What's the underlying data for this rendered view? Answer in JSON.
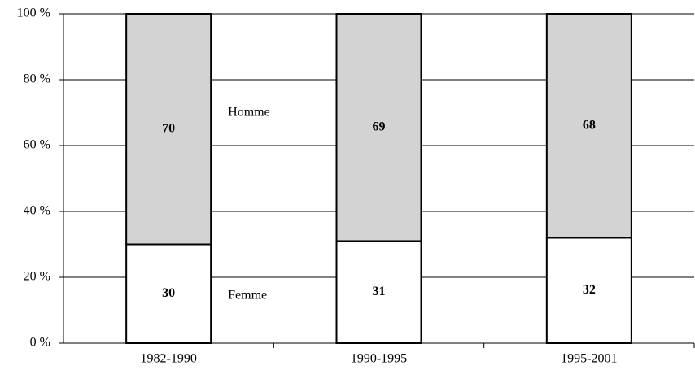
{
  "chart_data": {
    "type": "stacked-bar",
    "categories": [
      "1982-1990",
      "1990-1995",
      "1995-2001"
    ],
    "series": [
      {
        "name": "Femme",
        "color": "#ffffff",
        "values": [
          30,
          31,
          32
        ]
      },
      {
        "name": "Homme",
        "color": "#d3d3d3",
        "values": [
          70,
          69,
          68
        ]
      }
    ],
    "ylim": [
      0,
      100
    ],
    "yticks": [
      {
        "value": 0,
        "label": "0 %"
      },
      {
        "value": 20,
        "label": "20 %"
      },
      {
        "value": 40,
        "label": "40 %"
      },
      {
        "value": 60,
        "label": "60 %"
      },
      {
        "value": 80,
        "label": "80 %"
      },
      {
        "value": 100,
        "label": "100 %"
      }
    ],
    "grid": true
  }
}
